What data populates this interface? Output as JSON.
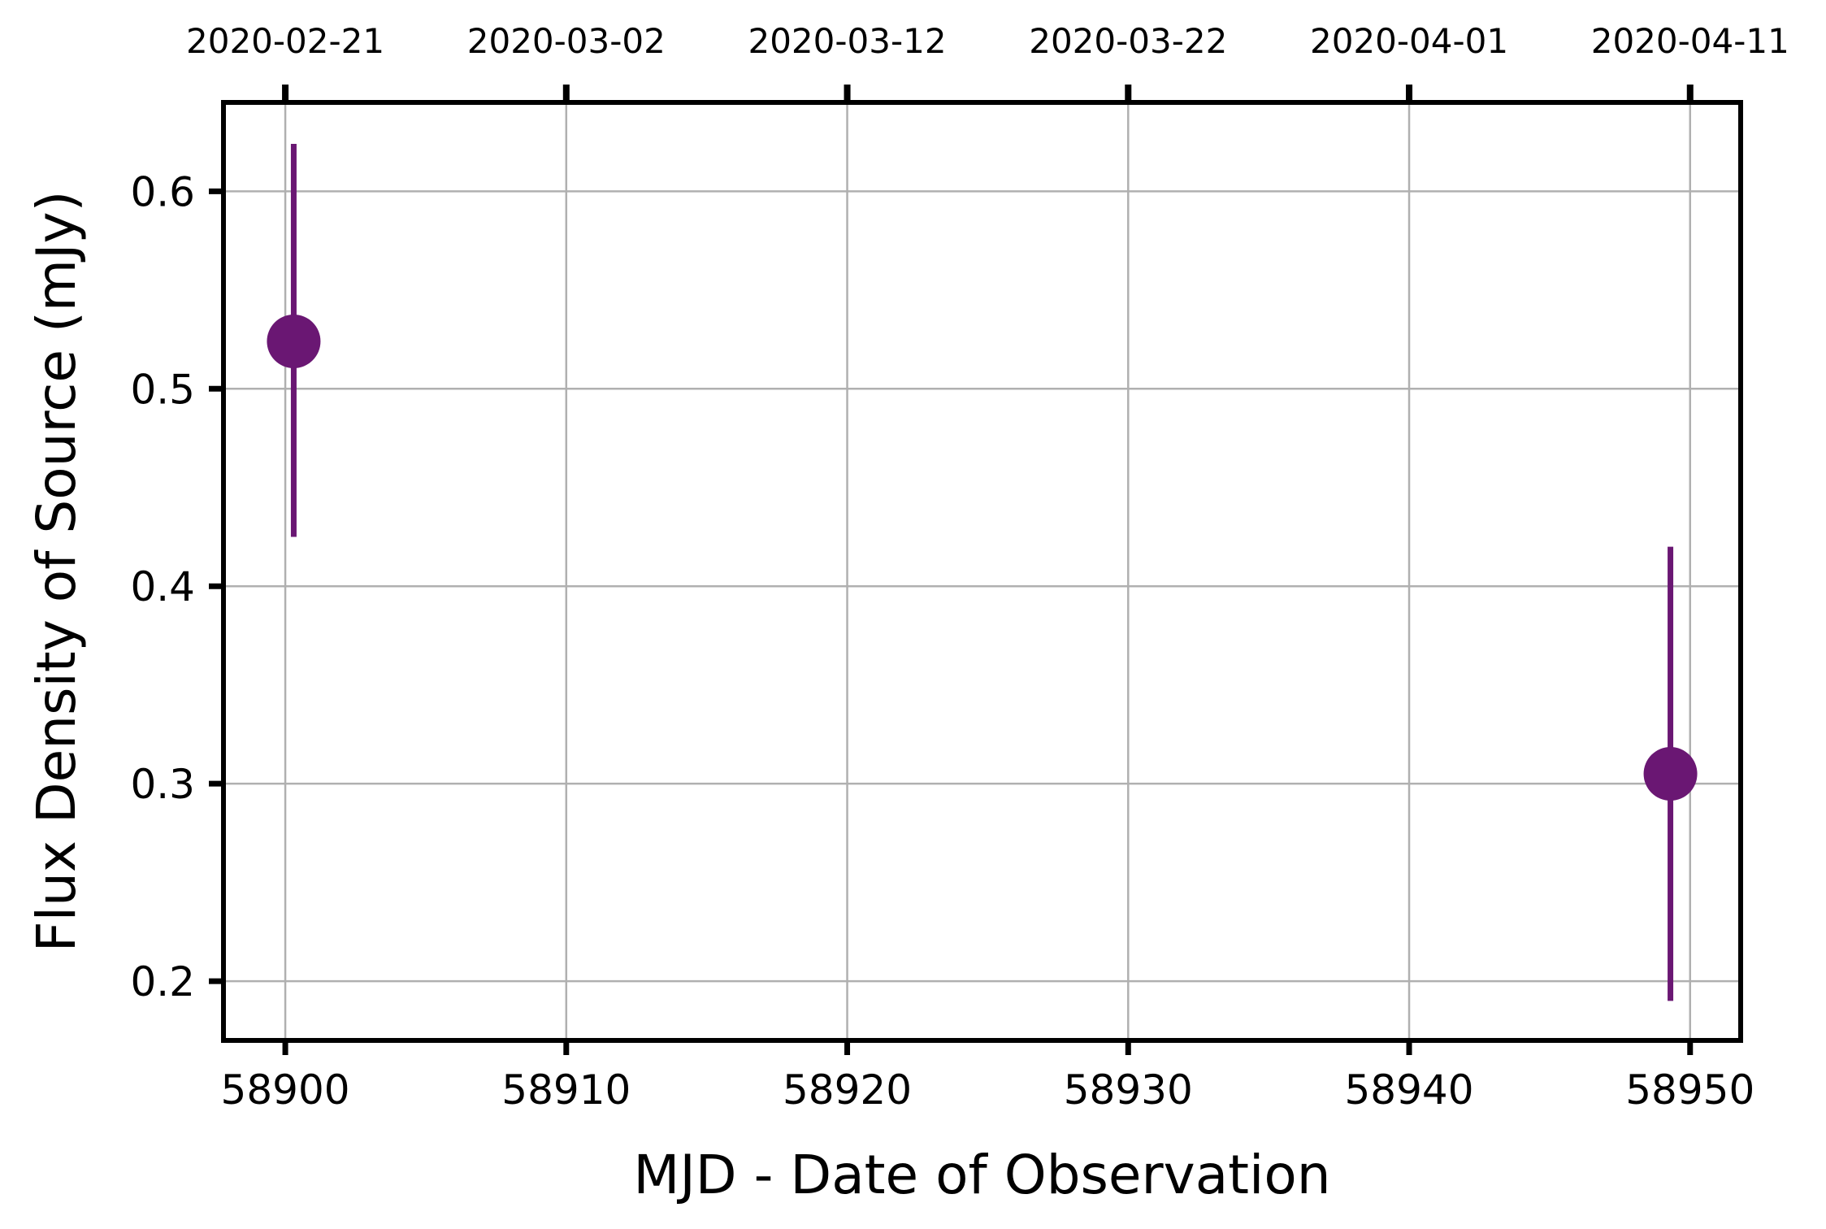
{
  "chart_data": {
    "type": "scatter",
    "title": "",
    "xlabel": "MJD - Date of Observation",
    "ylabel": "Flux Density of Source (mJy)",
    "xlim": [
      58897.8,
      58951.8
    ],
    "ylim": [
      0.17,
      0.645
    ],
    "x_ticks": [
      {
        "value": 58900,
        "label": "58900"
      },
      {
        "value": 58910,
        "label": "58910"
      },
      {
        "value": 58920,
        "label": "58920"
      },
      {
        "value": 58930,
        "label": "58930"
      },
      {
        "value": 58940,
        "label": "58940"
      },
      {
        "value": 58950,
        "label": "58950"
      }
    ],
    "y_ticks": [
      {
        "value": 0.2,
        "label": "0.2"
      },
      {
        "value": 0.3,
        "label": "0.3"
      },
      {
        "value": 0.4,
        "label": "0.4"
      },
      {
        "value": 0.5,
        "label": "0.5"
      },
      {
        "value": 0.6,
        "label": "0.6"
      }
    ],
    "top_x_ticks": [
      {
        "value": 58900,
        "label": "2020-02-21"
      },
      {
        "value": 58910,
        "label": "2020-03-02"
      },
      {
        "value": 58920,
        "label": "2020-03-12"
      },
      {
        "value": 58930,
        "label": "2020-03-22"
      },
      {
        "value": 58940,
        "label": "2020-04-01"
      },
      {
        "value": 58950,
        "label": "2020-04-11"
      }
    ],
    "grid": true,
    "color": "#6a1773",
    "points": [
      {
        "x": 58900.3,
        "y": 0.524,
        "yerr_low": 0.425,
        "yerr_high": 0.624
      },
      {
        "x": 58949.3,
        "y": 0.305,
        "yerr_low": 0.19,
        "yerr_high": 0.42
      }
    ]
  }
}
